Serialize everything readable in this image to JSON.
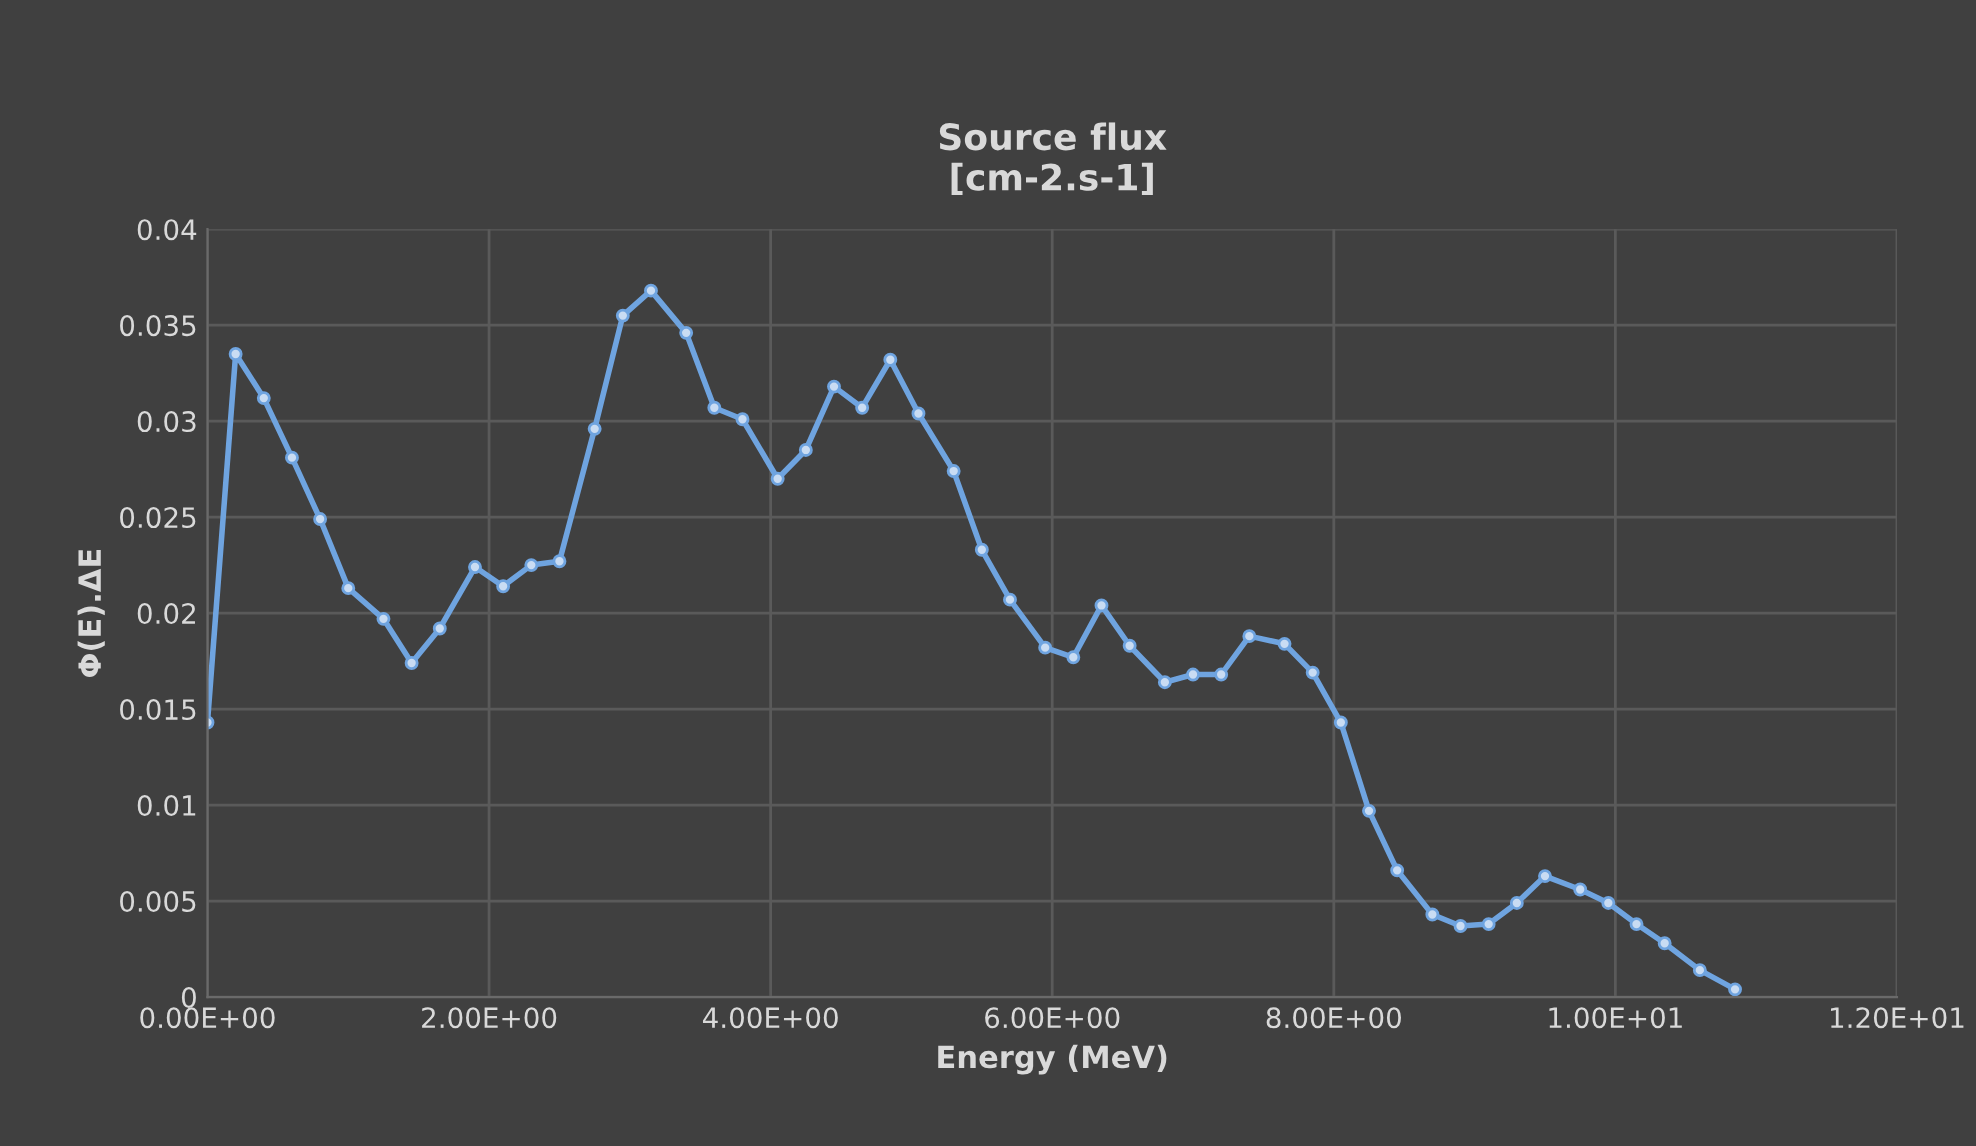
{
  "chart_data": {
    "type": "line",
    "title": "Source flux\n[cm-2.s-1]",
    "xlabel": "Energy (MeV)",
    "ylabel": "Φ(E).ΔE",
    "xlim": [
      0,
      12
    ],
    "xticks": [
      {
        "value": 0,
        "label": "0.00E+00"
      },
      {
        "value": 2,
        "label": "2.00E+00"
      },
      {
        "value": 4,
        "label": "4.00E+00"
      },
      {
        "value": 6,
        "label": "6.00E+00"
      },
      {
        "value": 8,
        "label": "8.00E+00"
      },
      {
        "value": 10,
        "label": "1.00E+01"
      },
      {
        "value": 12,
        "label": "1.20E+01"
      }
    ],
    "ylim": [
      0,
      0.04
    ],
    "yticks": [
      0,
      0.005,
      0.01,
      0.015,
      0.02,
      0.025,
      0.03,
      0.035,
      0.04
    ],
    "grid": true,
    "marker": "circle",
    "line_style": "solid",
    "legend": false,
    "series": [
      {
        "color": "#6fa4e0",
        "x": [
          0,
          0.2,
          0.4,
          0.6,
          0.8,
          1.0,
          1.25,
          1.45,
          1.65,
          1.9,
          2.1,
          2.3,
          2.5,
          2.75,
          2.95,
          3.15,
          3.4,
          3.6,
          3.8,
          4.05,
          4.25,
          4.45,
          4.65,
          4.85,
          5.05,
          5.3,
          5.5,
          5.7,
          5.95,
          6.15,
          6.35,
          6.55,
          6.8,
          7.0,
          7.2,
          7.4,
          7.65,
          7.85,
          8.05,
          8.25,
          8.45,
          8.7,
          8.9,
          9.1,
          9.3,
          9.5,
          9.75,
          9.95,
          10.15,
          10.35,
          10.6,
          10.85
        ],
        "values": [
          0.0143,
          0.0335,
          0.0312,
          0.0281,
          0.0249,
          0.0213,
          0.0197,
          0.0174,
          0.0192,
          0.0224,
          0.0214,
          0.0225,
          0.0227,
          0.0296,
          0.0355,
          0.0368,
          0.0346,
          0.0307,
          0.0301,
          0.027,
          0.0285,
          0.0318,
          0.0307,
          0.0332,
          0.0304,
          0.0274,
          0.0233,
          0.0207,
          0.0182,
          0.0177,
          0.0204,
          0.0183,
          0.0164,
          0.0168,
          0.0168,
          0.0188,
          0.0184,
          0.0169,
          0.0143,
          0.0097,
          0.0066,
          0.0043,
          0.0037,
          0.0038,
          0.0049,
          0.0063,
          0.0056,
          0.0049,
          0.0038,
          0.0028,
          0.0014,
          0.0004
        ]
      }
    ]
  }
}
